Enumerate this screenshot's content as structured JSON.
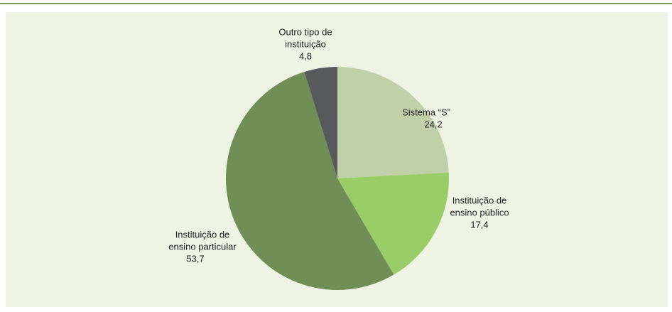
{
  "chart_data": {
    "type": "pie",
    "categories": [
      [
        "Sistema “S”"
      ],
      [
        "Instituição de",
        "ensino público"
      ],
      [
        "Instituição de",
        "ensino particular"
      ],
      [
        "Outro tipo de",
        "instituição"
      ]
    ],
    "values": [
      24.2,
      17.4,
      53.7,
      4.8
    ],
    "value_labels": [
      "24,2",
      "17,4",
      "53,7",
      "4,8"
    ],
    "colors": [
      "#c0d1a9",
      "#9acd68",
      "#6f8f57",
      "#58595b"
    ]
  }
}
